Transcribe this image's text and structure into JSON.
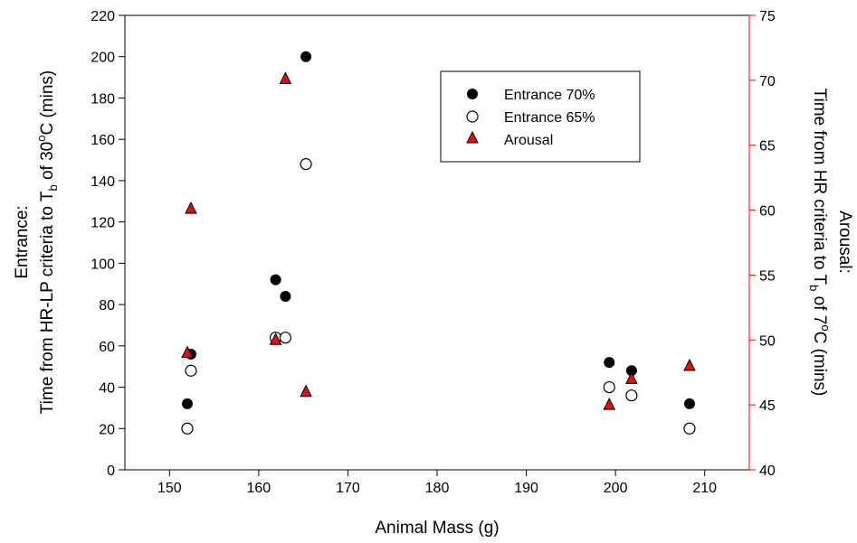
{
  "chart_data": {
    "type": "scatter",
    "xlabel": "Animal Mass (g)",
    "xlim": [
      145,
      215
    ],
    "xticks": [
      150,
      160,
      170,
      180,
      190,
      200,
      210
    ],
    "y_left": {
      "label_line1": "Entrance:",
      "label_line2_pre": "Time from HR-LP criteria to T",
      "label_line2_sub": "b",
      "label_line2_mid": " of 30",
      "label_line2_sup": "o",
      "label_line2_post": "C (mins)",
      "ylim": [
        0,
        220
      ],
      "ticks": [
        0,
        20,
        40,
        60,
        80,
        100,
        120,
        140,
        160,
        180,
        200,
        220
      ]
    },
    "y_right": {
      "label_line1": "Arousal:",
      "label_line2_pre": "Time from HR criteria to T",
      "label_line2_sub": "b",
      "label_line2_mid": " of 7",
      "label_line2_sup": "o",
      "label_line2_post": "C (mins)",
      "ylim": [
        40,
        75
      ],
      "ticks": [
        40,
        45,
        50,
        55,
        60,
        65,
        70,
        75
      ],
      "color": "#ff0000"
    },
    "series": [
      {
        "name": "Entrance 70%",
        "axis": "left",
        "marker": "filled-circle",
        "color": "#000000",
        "points": [
          [
            152.0,
            32
          ],
          [
            152.4,
            56
          ],
          [
            161.9,
            92
          ],
          [
            163.0,
            84
          ],
          [
            165.3,
            200
          ],
          [
            199.3,
            52
          ],
          [
            201.8,
            48
          ],
          [
            208.3,
            32
          ]
        ]
      },
      {
        "name": "Entrance 65%",
        "axis": "left",
        "marker": "open-circle",
        "color": "#000000",
        "points": [
          [
            152.0,
            20
          ],
          [
            152.4,
            48
          ],
          [
            161.9,
            64
          ],
          [
            163.0,
            64
          ],
          [
            165.3,
            148
          ],
          [
            199.3,
            40
          ],
          [
            201.8,
            36
          ],
          [
            208.3,
            20
          ]
        ]
      },
      {
        "name": "Arousal",
        "axis": "right",
        "marker": "triangle",
        "color": "#dd1111",
        "points": [
          [
            152.0,
            49.0
          ],
          [
            152.4,
            60.1
          ],
          [
            161.9,
            50.0
          ],
          [
            163.0,
            70.1
          ],
          [
            165.3,
            46.0
          ],
          [
            199.3,
            45.0
          ],
          [
            201.8,
            47.0
          ],
          [
            208.3,
            48.0
          ]
        ]
      }
    ],
    "legend": {
      "position": "top-right"
    }
  }
}
